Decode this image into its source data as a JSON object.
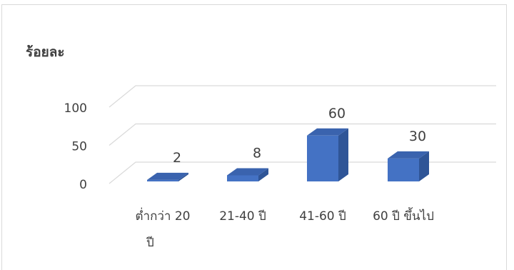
{
  "chart_data": {
    "type": "bar",
    "title": "",
    "ylabel": "ร้อยละ",
    "xlabel": "",
    "categories": [
      "ต่ำกว่า 20 ปี",
      "21-40 ปี",
      "41-60 ปี",
      "60 ปี ขึ้นไป"
    ],
    "values": [
      2,
      8,
      60,
      30
    ],
    "data_labels": [
      "2",
      "8",
      "60",
      "30"
    ],
    "yticks": [
      "0",
      "50",
      "100"
    ],
    "ylim": [
      0,
      100
    ],
    "grid": true,
    "style": "3d-column",
    "bar_color": "#4472c4"
  }
}
